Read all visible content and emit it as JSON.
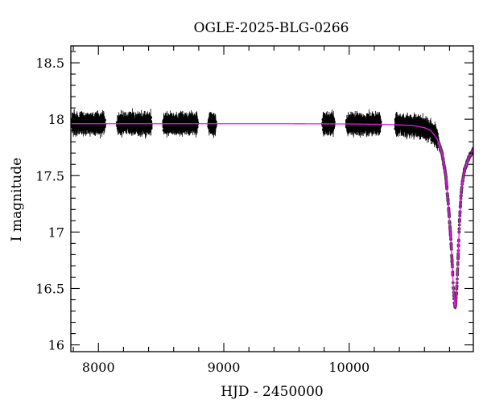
{
  "chart_data": {
    "type": "scatter",
    "title": "OGLE-2025-BLG-0266",
    "xlabel": "HJD - 2450000",
    "ylabel": "I magnitude",
    "xlim": [
      7780,
      10990
    ],
    "ylim": [
      18.65,
      15.94
    ],
    "y_inverted": true,
    "xticks": [
      8000,
      9000,
      10000
    ],
    "xtick_labels": [
      "8000",
      "9000",
      "10000"
    ],
    "yticks": [
      16,
      16.5,
      17,
      17.5,
      18,
      18.5
    ],
    "ytick_labels": [
      "16",
      "16.5",
      "17",
      "17.5",
      "18",
      "18.5"
    ],
    "grid": false,
    "legend": "none",
    "baseline_magnitude": 17.96,
    "peak": {
      "hjd": 10845,
      "magnitude": 16.33
    },
    "observing_seasons": [
      {
        "start": 7790,
        "end": 8050
      },
      {
        "start": 8150,
        "end": 8420
      },
      {
        "start": 8520,
        "end": 8790
      },
      {
        "start": 8880,
        "end": 8935
      },
      {
        "start": 9790,
        "end": 9880
      },
      {
        "start": 9980,
        "end": 10250
      },
      {
        "start": 10370,
        "end": 10990
      }
    ],
    "series": [
      {
        "kind": "model",
        "color": "#e01ee0",
        "points": [
          [
            7780,
            17.96
          ],
          [
            9500,
            17.96
          ],
          [
            10000,
            17.958
          ],
          [
            10300,
            17.954
          ],
          [
            10500,
            17.945
          ],
          [
            10600,
            17.925
          ],
          [
            10650,
            17.9
          ],
          [
            10700,
            17.83
          ],
          [
            10740,
            17.7
          ],
          [
            10770,
            17.5
          ],
          [
            10790,
            17.25
          ],
          [
            10810,
            16.95
          ],
          [
            10820,
            16.75
          ],
          [
            10830,
            16.52
          ],
          [
            10840,
            16.37
          ],
          [
            10845,
            16.33
          ],
          [
            10850,
            16.37
          ],
          [
            10860,
            16.55
          ],
          [
            10870,
            16.82
          ],
          [
            10880,
            17.1
          ],
          [
            10890,
            17.3
          ],
          [
            10900,
            17.42
          ],
          [
            10920,
            17.55
          ],
          [
            10950,
            17.65
          ],
          [
            10990,
            17.73
          ]
        ]
      },
      {
        "kind": "observations",
        "color": "#000000",
        "model_color": "#5a2a5a"
      }
    ]
  }
}
